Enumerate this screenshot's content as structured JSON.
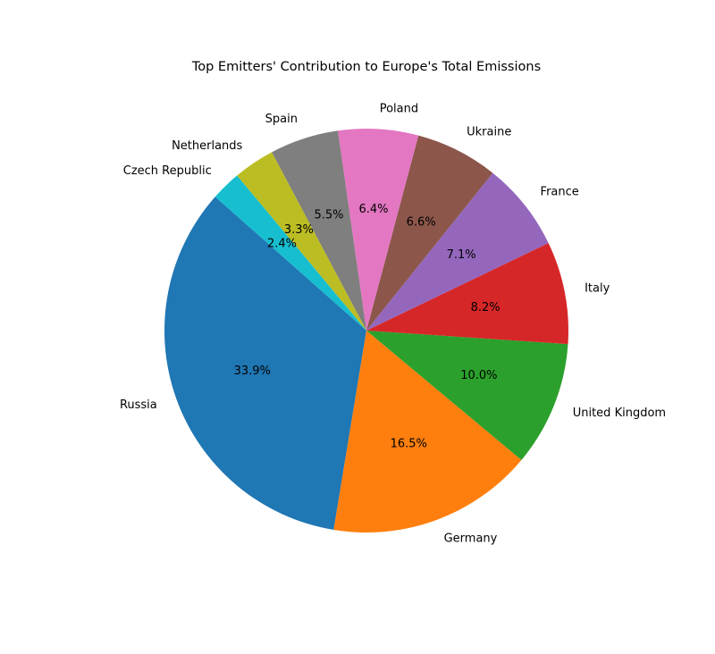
{
  "chart_data": {
    "type": "pie",
    "title": "Top Emitters' Contribution to Europe's Total Emissions",
    "start_angle_deg": 138.5,
    "direction": "counterclockwise",
    "slices": [
      {
        "label": "Russia",
        "value": 33.9,
        "pct_label": "33.9%",
        "color": "#1f77b4"
      },
      {
        "label": "Germany",
        "value": 16.5,
        "pct_label": "16.5%",
        "color": "#ff7f0e"
      },
      {
        "label": "United Kingdom",
        "value": 10.0,
        "pct_label": "10.0%",
        "color": "#2ca02c"
      },
      {
        "label": "Italy",
        "value": 8.2,
        "pct_label": "8.2%",
        "color": "#d62728"
      },
      {
        "label": "France",
        "value": 7.1,
        "pct_label": "7.1%",
        "color": "#9467bd"
      },
      {
        "label": "Ukraine",
        "value": 6.6,
        "pct_label": "6.6%",
        "color": "#8c564b"
      },
      {
        "label": "Poland",
        "value": 6.4,
        "pct_label": "6.4%",
        "color": "#e377c2"
      },
      {
        "label": "Spain",
        "value": 5.5,
        "pct_label": "5.5%",
        "color": "#7f7f7f"
      },
      {
        "label": "Netherlands",
        "value": 3.3,
        "pct_label": "3.3%",
        "color": "#bcbd22"
      },
      {
        "label": "Czech Republic",
        "value": 2.4,
        "pct_label": "2.4%",
        "color": "#17becf"
      }
    ]
  }
}
